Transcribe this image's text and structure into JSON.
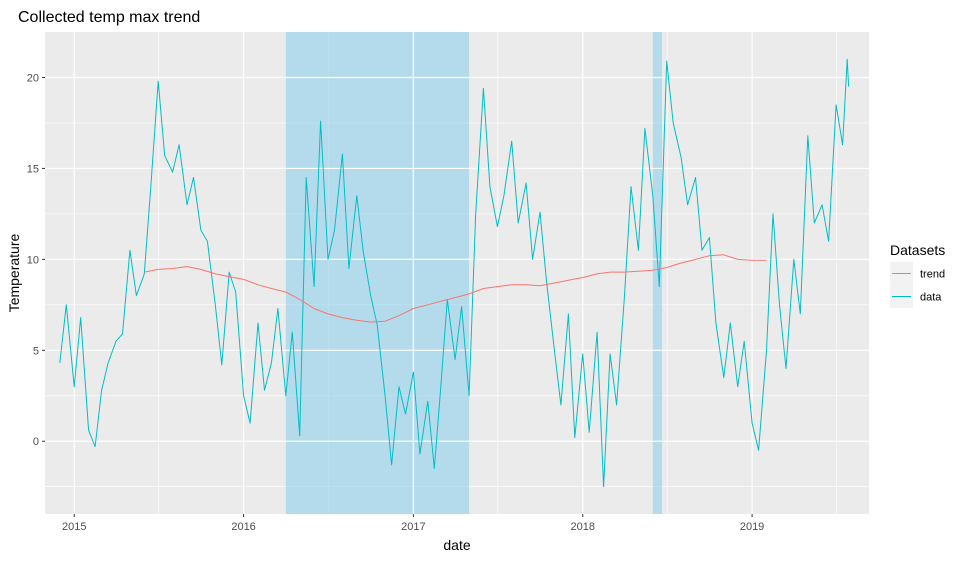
{
  "chart_data": {
    "type": "line",
    "title": "Collected temp max trend",
    "xlabel": "date",
    "ylabel": "Temperature",
    "x_ticks": [
      "2015",
      "2016",
      "2017",
      "2018",
      "2019"
    ],
    "y_ticks": [
      0,
      5,
      10,
      15,
      20
    ],
    "xlim": [
      "2014-10-30",
      "2019-09-10"
    ],
    "ylim": [
      -4,
      22.5
    ],
    "grid": true,
    "legend": {
      "title": "Datasets",
      "position": "right"
    },
    "shaded_regions": [
      {
        "start": "2016-04-01",
        "end": "2017-05-01",
        "color": "#87CEEB"
      },
      {
        "start": "2018-06-01",
        "end": "2018-06-21",
        "color": "#87CEEB"
      }
    ],
    "series": [
      {
        "name": "trend",
        "color": "#F8766D",
        "points": [
          [
            "2015-06-01",
            9.3
          ],
          [
            "2015-07-01",
            9.45
          ],
          [
            "2015-08-01",
            9.5
          ],
          [
            "2015-09-01",
            9.6
          ],
          [
            "2015-10-01",
            9.45
          ],
          [
            "2015-11-01",
            9.2
          ],
          [
            "2015-12-01",
            9.05
          ],
          [
            "2016-01-01",
            8.9
          ],
          [
            "2016-02-01",
            8.6
          ],
          [
            "2016-03-01",
            8.4
          ],
          [
            "2016-04-01",
            8.2
          ],
          [
            "2016-05-01",
            7.8
          ],
          [
            "2016-06-01",
            7.3
          ],
          [
            "2016-07-01",
            7.0
          ],
          [
            "2016-08-01",
            6.8
          ],
          [
            "2016-09-01",
            6.65
          ],
          [
            "2016-10-01",
            6.55
          ],
          [
            "2016-11-01",
            6.6
          ],
          [
            "2016-12-01",
            6.9
          ],
          [
            "2017-01-01",
            7.3
          ],
          [
            "2017-02-01",
            7.5
          ],
          [
            "2017-03-01",
            7.7
          ],
          [
            "2017-04-01",
            7.9
          ],
          [
            "2017-05-01",
            8.1
          ],
          [
            "2017-06-01",
            8.4
          ],
          [
            "2017-07-01",
            8.5
          ],
          [
            "2017-08-01",
            8.6
          ],
          [
            "2017-09-01",
            8.6
          ],
          [
            "2017-10-01",
            8.55
          ],
          [
            "2017-11-01",
            8.7
          ],
          [
            "2017-12-01",
            8.85
          ],
          [
            "2018-01-01",
            9.0
          ],
          [
            "2018-02-01",
            9.2
          ],
          [
            "2018-03-01",
            9.3
          ],
          [
            "2018-04-01",
            9.3
          ],
          [
            "2018-05-01",
            9.35
          ],
          [
            "2018-06-01",
            9.4
          ],
          [
            "2018-07-01",
            9.55
          ],
          [
            "2018-08-01",
            9.8
          ],
          [
            "2018-09-01",
            10.0
          ],
          [
            "2018-10-01",
            10.2
          ],
          [
            "2018-11-01",
            10.25
          ],
          [
            "2018-12-01",
            10.0
          ],
          [
            "2019-01-01",
            9.95
          ],
          [
            "2019-02-01",
            9.95
          ]
        ]
      },
      {
        "name": "data",
        "color": "#00BFC4",
        "points": [
          [
            "2014-12-01",
            4.3
          ],
          [
            "2014-12-15",
            7.5
          ],
          [
            "2015-01-01",
            3.0
          ],
          [
            "2015-01-15",
            6.8
          ],
          [
            "2015-02-01",
            0.6
          ],
          [
            "2015-02-15",
            -0.3
          ],
          [
            "2015-03-01",
            2.8
          ],
          [
            "2015-03-15",
            4.3
          ],
          [
            "2015-04-01",
            5.5
          ],
          [
            "2015-04-15",
            5.9
          ],
          [
            "2015-05-01",
            10.5
          ],
          [
            "2015-05-15",
            8.0
          ],
          [
            "2015-06-01",
            9.2
          ],
          [
            "2015-06-15",
            14.0
          ],
          [
            "2015-07-01",
            19.8
          ],
          [
            "2015-07-15",
            15.7
          ],
          [
            "2015-08-01",
            14.8
          ],
          [
            "2015-08-15",
            16.3
          ],
          [
            "2015-09-01",
            13.0
          ],
          [
            "2015-09-15",
            14.5
          ],
          [
            "2015-10-01",
            11.6
          ],
          [
            "2015-10-15",
            11.0
          ],
          [
            "2015-11-01",
            7.5
          ],
          [
            "2015-11-15",
            4.2
          ],
          [
            "2015-12-01",
            9.3
          ],
          [
            "2015-12-15",
            8.2
          ],
          [
            "2016-01-01",
            2.5
          ],
          [
            "2016-01-15",
            1.0
          ],
          [
            "2016-02-01",
            6.5
          ],
          [
            "2016-02-15",
            2.8
          ],
          [
            "2016-03-01",
            4.3
          ],
          [
            "2016-03-15",
            7.3
          ],
          [
            "2016-04-01",
            2.5
          ],
          [
            "2016-04-15",
            6.0
          ],
          [
            "2016-05-01",
            0.3
          ],
          [
            "2016-05-15",
            14.5
          ],
          [
            "2016-06-01",
            8.5
          ],
          [
            "2016-06-15",
            17.6
          ],
          [
            "2016-07-01",
            10.0
          ],
          [
            "2016-07-15",
            11.6
          ],
          [
            "2016-08-01",
            15.8
          ],
          [
            "2016-08-15",
            9.5
          ],
          [
            "2016-09-01",
            13.5
          ],
          [
            "2016-09-15",
            10.4
          ],
          [
            "2016-10-01",
            8.0
          ],
          [
            "2016-10-15",
            6.4
          ],
          [
            "2016-11-01",
            2.5
          ],
          [
            "2016-11-15",
            -1.3
          ],
          [
            "2016-12-01",
            3.0
          ],
          [
            "2016-12-15",
            1.5
          ],
          [
            "2017-01-01",
            3.8
          ],
          [
            "2017-01-15",
            -0.7
          ],
          [
            "2017-02-01",
            2.2
          ],
          [
            "2017-02-15",
            -1.5
          ],
          [
            "2017-03-01",
            3.0
          ],
          [
            "2017-03-15",
            7.8
          ],
          [
            "2017-04-01",
            4.5
          ],
          [
            "2017-04-15",
            7.4
          ],
          [
            "2017-05-01",
            2.5
          ],
          [
            "2017-05-15",
            12.4
          ],
          [
            "2017-06-01",
            19.4
          ],
          [
            "2017-06-15",
            14.0
          ],
          [
            "2017-07-01",
            11.8
          ],
          [
            "2017-07-15",
            13.5
          ],
          [
            "2017-08-01",
            16.5
          ],
          [
            "2017-08-15",
            12.0
          ],
          [
            "2017-09-01",
            14.2
          ],
          [
            "2017-09-15",
            10.0
          ],
          [
            "2017-10-01",
            12.6
          ],
          [
            "2017-10-15",
            8.8
          ],
          [
            "2017-11-01",
            5.0
          ],
          [
            "2017-11-15",
            2.0
          ],
          [
            "2017-12-01",
            7.0
          ],
          [
            "2017-12-15",
            0.2
          ],
          [
            "2018-01-01",
            4.8
          ],
          [
            "2018-01-15",
            0.5
          ],
          [
            "2018-02-01",
            6.0
          ],
          [
            "2018-02-15",
            -2.5
          ],
          [
            "2018-03-01",
            4.8
          ],
          [
            "2018-03-15",
            2.0
          ],
          [
            "2018-04-01",
            8.0
          ],
          [
            "2018-04-15",
            14.0
          ],
          [
            "2018-05-01",
            10.5
          ],
          [
            "2018-05-15",
            17.2
          ],
          [
            "2018-06-01",
            13.5
          ],
          [
            "2018-06-15",
            8.5
          ],
          [
            "2018-07-01",
            20.9
          ],
          [
            "2018-07-15",
            17.5
          ],
          [
            "2018-08-01",
            15.6
          ],
          [
            "2018-08-15",
            13.0
          ],
          [
            "2018-09-01",
            14.5
          ],
          [
            "2018-09-15",
            10.5
          ],
          [
            "2018-10-01",
            11.2
          ],
          [
            "2018-10-15",
            6.5
          ],
          [
            "2018-11-01",
            3.5
          ],
          [
            "2018-11-15",
            6.5
          ],
          [
            "2018-12-01",
            3.0
          ],
          [
            "2018-12-15",
            5.5
          ],
          [
            "2019-01-01",
            1.0
          ],
          [
            "2019-01-15",
            -0.5
          ],
          [
            "2019-02-01",
            5.0
          ],
          [
            "2019-02-15",
            12.5
          ],
          [
            "2019-03-01",
            7.5
          ],
          [
            "2019-03-15",
            4.0
          ],
          [
            "2019-04-01",
            10.0
          ],
          [
            "2019-04-15",
            7.0
          ],
          [
            "2019-05-01",
            16.8
          ],
          [
            "2019-05-15",
            12.0
          ],
          [
            "2019-06-01",
            13.0
          ],
          [
            "2019-06-15",
            11.0
          ],
          [
            "2019-07-01",
            18.5
          ],
          [
            "2019-07-15",
            16.3
          ],
          [
            "2019-07-25",
            21.0
          ],
          [
            "2019-07-28",
            19.5
          ]
        ]
      }
    ]
  }
}
